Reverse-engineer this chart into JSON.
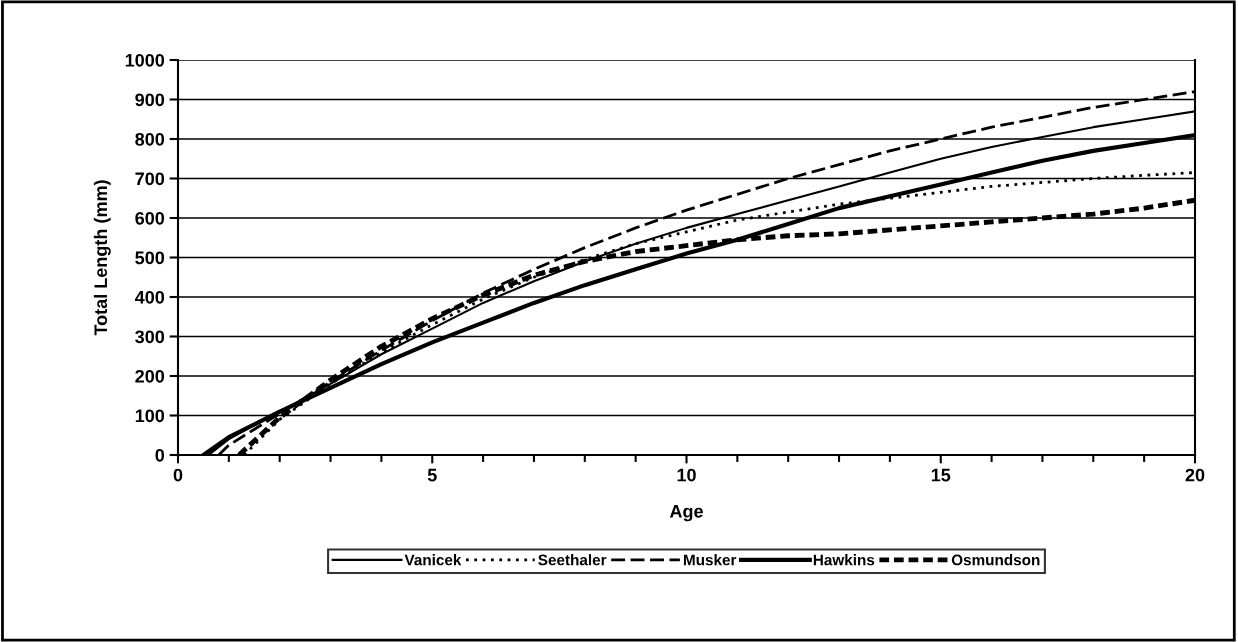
{
  "chart_data": {
    "type": "line",
    "xlabel": "Age",
    "ylabel": "Total Length (mm)",
    "xlim": [
      0,
      20
    ],
    "xticks": [
      0,
      5,
      10,
      15,
      20
    ],
    "ylim": [
      0,
      1000
    ],
    "yticks": [
      0,
      100,
      200,
      300,
      400,
      500,
      600,
      700,
      800,
      900,
      1000
    ],
    "grid": "y",
    "legend": "bottom",
    "marker": "none",
    "series": [
      {
        "name": "Vanicek",
        "color": "#000000",
        "line_style": "solid",
        "x": [
          0.6,
          1,
          2,
          3,
          4,
          5,
          6,
          7,
          8,
          9,
          10,
          11,
          12,
          13,
          14,
          15,
          16,
          17,
          18,
          19,
          20
        ],
        "values": [
          0,
          40,
          110,
          180,
          255,
          320,
          385,
          440,
          490,
          535,
          575,
          610,
          645,
          680,
          715,
          750,
          780,
          805,
          830,
          850,
          870
        ]
      },
      {
        "name": "Seethaler",
        "color": "#000000",
        "line_style": "dotted",
        "x": [
          1.3,
          2,
          3,
          4,
          5,
          6,
          7,
          8,
          9,
          10,
          11,
          12,
          13,
          14,
          15,
          16,
          17,
          18,
          19,
          20
        ],
        "values": [
          0,
          90,
          180,
          260,
          330,
          395,
          450,
          495,
          535,
          565,
          595,
          615,
          635,
          650,
          665,
          680,
          690,
          700,
          708,
          715
        ]
      },
      {
        "name": "Musker",
        "color": "#000000",
        "line_style": "dashed",
        "x": [
          0.8,
          1,
          2,
          3,
          4,
          5,
          6,
          7,
          8,
          9,
          10,
          11,
          12,
          13,
          14,
          15,
          16,
          17,
          18,
          19,
          20
        ],
        "values": [
          0,
          25,
          105,
          185,
          265,
          340,
          410,
          470,
          525,
          575,
          620,
          660,
          700,
          735,
          770,
          800,
          830,
          855,
          880,
          900,
          920
        ]
      },
      {
        "name": "Hawkins",
        "color": "#000000",
        "line_style": "solid",
        "x": [
          0.5,
          1,
          2,
          3,
          4,
          5,
          6,
          7,
          8,
          9,
          10,
          11,
          12,
          13,
          14,
          15,
          16,
          17,
          18,
          19,
          20
        ],
        "values": [
          0,
          45,
          110,
          170,
          230,
          285,
          335,
          385,
          430,
          470,
          510,
          545,
          585,
          625,
          655,
          685,
          715,
          745,
          770,
          790,
          810
        ]
      },
      {
        "name": "Osmundson",
        "color": "#000000",
        "line_style": "dashed",
        "x": [
          1.2,
          2,
          3,
          4,
          5,
          6,
          7,
          8,
          9,
          10,
          11,
          12,
          13,
          14,
          15,
          16,
          17,
          18,
          19,
          20
        ],
        "values": [
          0,
          95,
          190,
          275,
          345,
          405,
          455,
          490,
          515,
          530,
          545,
          555,
          560,
          570,
          580,
          590,
          600,
          610,
          625,
          645
        ]
      }
    ]
  }
}
